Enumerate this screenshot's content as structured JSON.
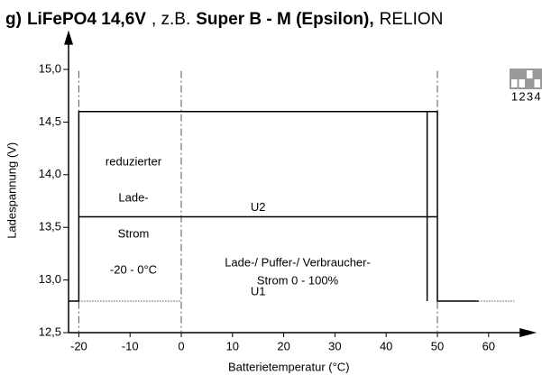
{
  "chart_data": {
    "type": "line",
    "title": [
      {
        "text": "g)",
        "bold": true
      },
      {
        "text": "LiFePO4  14,6V",
        "bold": true
      },
      {
        "text": ",  z.B.",
        "bold": false
      },
      {
        "text": "Super B - M (Epsilon),",
        "bold": true
      },
      {
        "text": "RELION",
        "bold": false
      }
    ],
    "x_label": "Batterietemperatur (°C)",
    "y_label": "Ladespannung (V)",
    "xlim": [
      -22,
      65
    ],
    "ylim": [
      12.5,
      15.2
    ],
    "xticks": [
      -20,
      -10,
      0,
      10,
      20,
      30,
      40,
      50,
      60
    ],
    "yticks": [
      {
        "value": 12.5,
        "label": "12,5"
      },
      {
        "value": 13,
        "label": "13,0"
      },
      {
        "value": 13.5,
        "label": "13,5"
      },
      {
        "value": 14,
        "label": "14,0"
      },
      {
        "value": 14.5,
        "label": "14,5"
      },
      {
        "value": 15,
        "label": "15,0"
      }
    ],
    "vlines": [
      -20,
      0,
      50
    ],
    "series": [
      {
        "name": "U1",
        "color": "#000000",
        "x": [
          -22,
          -20,
          -20,
          50,
          50,
          58
        ],
        "values": [
          12.8,
          12.8,
          14.6,
          14.6,
          12.8,
          12.8
        ]
      },
      {
        "name": "U2",
        "color": "#000000",
        "x": [
          -20,
          50
        ],
        "values": [
          13.6,
          13.6
        ]
      },
      {
        "color": "#000000",
        "x": [
          48,
          48
        ],
        "values": [
          14.6,
          12.8
        ]
      },
      {
        "color": "#000000",
        "dash": "dotted",
        "x": [
          -20,
          0
        ],
        "values": [
          12.8,
          12.8
        ]
      },
      {
        "color": "#000000",
        "dash": "dotted",
        "x": [
          58,
          65
        ],
        "values": [
          12.8,
          12.8
        ]
      }
    ],
    "annotations": [
      "reduzierter",
      "Lade-",
      "Strom",
      "-20 - 0°C",
      "Lade-/ Puffer-/ Verbraucher-",
      "Strom  0 - 100%"
    ],
    "switch_labels": [
      "1",
      "2",
      "3",
      "4"
    ]
  }
}
